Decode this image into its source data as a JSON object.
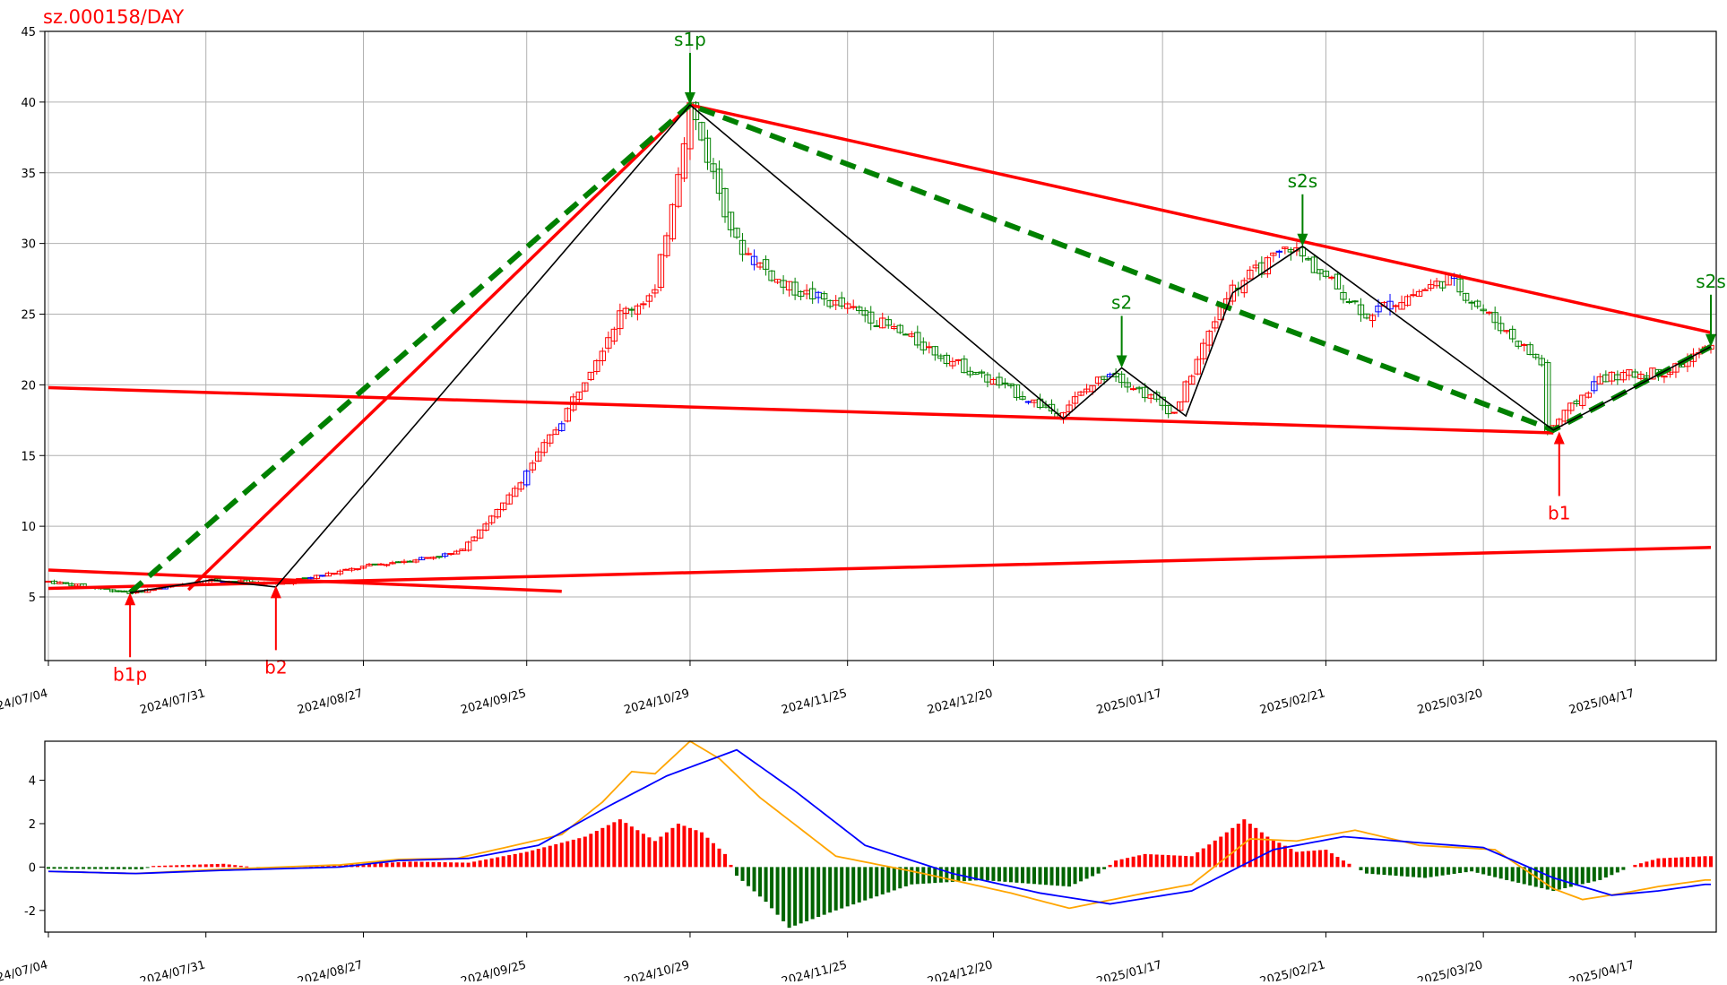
{
  "title": "sz.000158/DAY",
  "colors": {
    "title": "#ff0000",
    "up": "#ff0000",
    "down": "#008000",
    "doji": "#0000ff",
    "grid": "#b0b0b0",
    "trend": "#ff0000",
    "dash": "#008000",
    "bi": "#000000",
    "hist_pos": "#ff0000",
    "hist_neg": "#006400",
    "dif": "#ffa500",
    "dea": "#0000ff"
  },
  "chart_data": [
    {
      "type": "candlestick",
      "title": "sz.000158/DAY",
      "ylim": [
        0.5,
        45
      ],
      "yticks": [
        5,
        10,
        15,
        20,
        25,
        30,
        35,
        40,
        45
      ],
      "date_ticks": [
        "2024/07/04",
        "2024/07/31",
        "2024/08/27",
        "2024/09/25",
        "2024/10/29",
        "2024/11/25",
        "2024/12/20",
        "2025/01/17",
        "2025/02/21",
        "2025/03/20",
        "2025/04/17"
      ],
      "grid": true,
      "candles_ohlc_keypoints": [
        {
          "t": 0,
          "price": 6.1
        },
        {
          "t": 14,
          "price": 5.3
        },
        {
          "t": 28,
          "price": 6.2
        },
        {
          "t": 39,
          "price": 5.9
        },
        {
          "t": 55,
          "price": 7.2
        },
        {
          "t": 70,
          "price": 8.1
        },
        {
          "t": 78,
          "price": 11.5
        },
        {
          "t": 88,
          "price": 17.5
        },
        {
          "t": 98,
          "price": 25
        },
        {
          "t": 104,
          "price": 26.5
        },
        {
          "t": 110,
          "price": 39.8
        },
        {
          "t": 118,
          "price": 30
        },
        {
          "t": 126,
          "price": 27
        },
        {
          "t": 140,
          "price": 25
        },
        {
          "t": 158,
          "price": 21
        },
        {
          "t": 173,
          "price": 18
        },
        {
          "t": 182,
          "price": 21
        },
        {
          "t": 193,
          "price": 18
        },
        {
          "t": 202,
          "price": 26.5
        },
        {
          "t": 213,
          "price": 29.8
        },
        {
          "t": 226,
          "price": 25
        },
        {
          "t": 240,
          "price": 27.5
        },
        {
          "t": 256,
          "price": 21.5
        },
        {
          "t": 257,
          "price": 16.7
        },
        {
          "t": 266,
          "price": 20.5
        },
        {
          "t": 278,
          "price": 21
        },
        {
          "t": 284,
          "price": 22.5
        }
      ],
      "annotations": [
        {
          "label": "s1p",
          "t": 110,
          "price": 39.8,
          "kind": "sell"
        },
        {
          "label": "s2",
          "t": 184,
          "price": 21.2,
          "kind": "sell"
        },
        {
          "label": "s2s",
          "t": 215,
          "price": 29.8,
          "kind": "sell"
        },
        {
          "label": "s2s",
          "t": 285,
          "price": 22.7,
          "kind": "sell"
        },
        {
          "label": "b1p",
          "t": 14,
          "price": 5.3,
          "kind": "buy"
        },
        {
          "label": "b2",
          "t": 39,
          "price": 5.8,
          "kind": "buy"
        },
        {
          "label": "b1",
          "t": 259,
          "price": 16.7,
          "kind": "buy"
        }
      ],
      "bi_path": [
        {
          "t": 14,
          "price": 5.3
        },
        {
          "t": 28,
          "price": 6.2
        },
        {
          "t": 39,
          "price": 5.7
        },
        {
          "t": 110,
          "price": 39.8
        },
        {
          "t": 174,
          "price": 17.6
        },
        {
          "t": 184,
          "price": 21.2
        },
        {
          "t": 195,
          "price": 17.8
        },
        {
          "t": 203,
          "price": 26.5
        },
        {
          "t": 215,
          "price": 29.8
        },
        {
          "t": 258,
          "price": 16.8
        },
        {
          "t": 285,
          "price": 22.7
        }
      ],
      "segment_path": [
        {
          "t": 14,
          "price": 5.3
        },
        {
          "t": 110,
          "price": 39.8
        },
        {
          "t": 258,
          "price": 16.8
        },
        {
          "t": 285,
          "price": 22.7
        }
      ],
      "trend_lines": [
        {
          "from": {
            "t": 0,
            "price": 19.8
          },
          "to": {
            "t": 258,
            "price": 16.6
          }
        },
        {
          "from": {
            "t": 110,
            "price": 39.8
          },
          "to": {
            "t": 285,
            "price": 23.7
          }
        },
        {
          "from": {
            "t": 24,
            "price": 5.5
          },
          "to": {
            "t": 110,
            "price": 39.8
          }
        },
        {
          "from": {
            "t": 0,
            "price": 6.9
          },
          "to": {
            "t": 88,
            "price": 5.4
          }
        },
        {
          "from": {
            "t": 0,
            "price": 5.6
          },
          "to": {
            "t": 285,
            "price": 8.5
          }
        }
      ]
    },
    {
      "type": "macd",
      "ylim": [
        -3,
        5.8
      ],
      "yticks": [
        -2,
        0,
        2,
        4
      ],
      "date_ticks": [
        "2024/07/04",
        "2024/07/31",
        "2024/08/27",
        "2024/09/25",
        "2024/10/29",
        "2024/11/25",
        "2024/12/20",
        "2025/01/17",
        "2025/02/21",
        "2025/03/20",
        "2025/04/17"
      ],
      "dif_keypoints": [
        {
          "t": 0,
          "v": -0.2
        },
        {
          "t": 15,
          "v": -0.3
        },
        {
          "t": 30,
          "v": -0.1
        },
        {
          "t": 50,
          "v": 0.1
        },
        {
          "t": 60,
          "v": 0.35
        },
        {
          "t": 70,
          "v": 0.4
        },
        {
          "t": 80,
          "v": 1.0
        },
        {
          "t": 88,
          "v": 1.5
        },
        {
          "t": 95,
          "v": 3.0
        },
        {
          "t": 100,
          "v": 4.4
        },
        {
          "t": 104,
          "v": 4.3
        },
        {
          "t": 110,
          "v": 5.8
        },
        {
          "t": 115,
          "v": 5.0
        },
        {
          "t": 122,
          "v": 3.2
        },
        {
          "t": 135,
          "v": 0.5
        },
        {
          "t": 150,
          "v": -0.3
        },
        {
          "t": 165,
          "v": -1.2
        },
        {
          "t": 175,
          "v": -1.9
        },
        {
          "t": 188,
          "v": -1.2
        },
        {
          "t": 196,
          "v": -0.8
        },
        {
          "t": 206,
          "v": 1.3
        },
        {
          "t": 214,
          "v": 1.2
        },
        {
          "t": 224,
          "v": 1.7
        },
        {
          "t": 235,
          "v": 1.0
        },
        {
          "t": 248,
          "v": 0.8
        },
        {
          "t": 258,
          "v": -1.0
        },
        {
          "t": 263,
          "v": -1.5
        },
        {
          "t": 270,
          "v": -1.2
        },
        {
          "t": 276,
          "v": -0.9
        },
        {
          "t": 284,
          "v": -0.6
        }
      ],
      "dea_keypoints": [
        {
          "t": 0,
          "v": -0.2
        },
        {
          "t": 15,
          "v": -0.3
        },
        {
          "t": 30,
          "v": -0.15
        },
        {
          "t": 50,
          "v": 0.0
        },
        {
          "t": 60,
          "v": 0.3
        },
        {
          "t": 72,
          "v": 0.4
        },
        {
          "t": 84,
          "v": 1.0
        },
        {
          "t": 96,
          "v": 2.8
        },
        {
          "t": 106,
          "v": 4.2
        },
        {
          "t": 118,
          "v": 5.4
        },
        {
          "t": 128,
          "v": 3.5
        },
        {
          "t": 140,
          "v": 1.0
        },
        {
          "t": 155,
          "v": -0.3
        },
        {
          "t": 170,
          "v": -1.2
        },
        {
          "t": 182,
          "v": -1.7
        },
        {
          "t": 196,
          "v": -1.1
        },
        {
          "t": 210,
          "v": 0.8
        },
        {
          "t": 222,
          "v": 1.4
        },
        {
          "t": 236,
          "v": 1.1
        },
        {
          "t": 246,
          "v": 0.9
        },
        {
          "t": 258,
          "v": -0.5
        },
        {
          "t": 268,
          "v": -1.3
        },
        {
          "t": 276,
          "v": -1.1
        },
        {
          "t": 284,
          "v": -0.8
        }
      ],
      "histogram_keypoints": [
        {
          "t": 0,
          "v": -0.08
        },
        {
          "t": 16,
          "v": -0.1
        },
        {
          "t": 18,
          "v": 0.05
        },
        {
          "t": 30,
          "v": 0.15
        },
        {
          "t": 36,
          "v": -0.03
        },
        {
          "t": 44,
          "v": 0.05
        },
        {
          "t": 55,
          "v": 0.15
        },
        {
          "t": 62,
          "v": 0.25
        },
        {
          "t": 72,
          "v": 0.2
        },
        {
          "t": 82,
          "v": 0.7
        },
        {
          "t": 92,
          "v": 1.4
        },
        {
          "t": 98,
          "v": 2.2
        },
        {
          "t": 104,
          "v": 1.2
        },
        {
          "t": 108,
          "v": 2.0
        },
        {
          "t": 112,
          "v": 1.6
        },
        {
          "t": 116,
          "v": 0.6
        },
        {
          "t": 118,
          "v": -0.4
        },
        {
          "t": 123,
          "v": -1.6
        },
        {
          "t": 127,
          "v": -2.8
        },
        {
          "t": 135,
          "v": -2.0
        },
        {
          "t": 148,
          "v": -0.8
        },
        {
          "t": 160,
          "v": -0.6
        },
        {
          "t": 175,
          "v": -0.9
        },
        {
          "t": 180,
          "v": -0.3
        },
        {
          "t": 183,
          "v": 0.3
        },
        {
          "t": 188,
          "v": 0.6
        },
        {
          "t": 196,
          "v": 0.5
        },
        {
          "t": 201,
          "v": 1.4
        },
        {
          "t": 205,
          "v": 2.2
        },
        {
          "t": 209,
          "v": 1.4
        },
        {
          "t": 214,
          "v": 0.7
        },
        {
          "t": 219,
          "v": 0.8
        },
        {
          "t": 222,
          "v": 0.3
        },
        {
          "t": 226,
          "v": -0.3
        },
        {
          "t": 236,
          "v": -0.5
        },
        {
          "t": 244,
          "v": -0.2
        },
        {
          "t": 250,
          "v": -0.6
        },
        {
          "t": 258,
          "v": -1.1
        },
        {
          "t": 266,
          "v": -0.6
        },
        {
          "t": 272,
          "v": 0.1
        },
        {
          "t": 276,
          "v": 0.4
        },
        {
          "t": 284,
          "v": 0.5
        }
      ]
    }
  ]
}
